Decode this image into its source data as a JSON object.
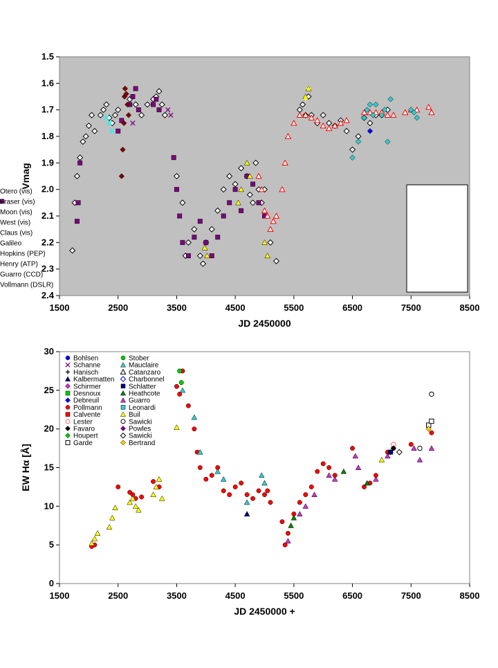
{
  "chart_data": [
    {
      "type": "scatter",
      "xlabel": "JD 2450000",
      "ylabel": "Vmag",
      "xlim": [
        1500,
        8500
      ],
      "ylim": [
        1.5,
        2.4
      ],
      "y_inverted": true,
      "x_ticks": [
        "1500",
        "2500",
        "3500",
        "4500",
        "5500",
        "6500",
        "7500",
        "8500"
      ],
      "y_ticks": [
        "1.5",
        "1.6",
        "1.7",
        "1.8",
        "1.9",
        "2.0",
        "2.1",
        "2.2",
        "2.3",
        "2.4"
      ],
      "plot_background": "#c0c0c0",
      "grid": false,
      "legend_position": "lower-right",
      "series": [
        {
          "name": "Otero (vis)",
          "marker": "diamond-open",
          "color": "#000000",
          "x": [
            1720,
            1760,
            1800,
            1850,
            1900,
            1950,
            2000,
            2050,
            2100,
            2200,
            2250,
            2300,
            2350,
            2400,
            2450,
            2500,
            2700,
            2800,
            2900,
            3000,
            3100,
            3150,
            3200,
            3250,
            3300,
            3500,
            3600,
            3650,
            3700,
            3800,
            3900,
            3950,
            4000,
            4100,
            4200,
            4300,
            4400,
            4500,
            4600,
            4700,
            4750,
            4800,
            4850,
            4900,
            4950,
            5000,
            5100,
            5200,
            5600,
            5650,
            5700,
            5750,
            5800,
            5900,
            6000,
            6100,
            6200,
            6300,
            6400,
            6500,
            6600,
            6700,
            6800,
            6900,
            7000,
            7100
          ],
          "y": [
            2.23,
            2.05,
            1.95,
            1.88,
            1.82,
            1.8,
            1.76,
            1.72,
            1.78,
            1.72,
            1.7,
            1.68,
            1.73,
            1.75,
            1.72,
            1.7,
            1.66,
            1.68,
            1.72,
            1.68,
            1.66,
            1.65,
            1.63,
            1.68,
            1.72,
            1.95,
            2.05,
            2.25,
            2.2,
            2.15,
            2.25,
            2.28,
            2.2,
            2.15,
            2.08,
            2.0,
            1.95,
            1.98,
            1.92,
            1.95,
            2.02,
            2.05,
            1.9,
            2.0,
            2.05,
            2.0,
            2.2,
            2.27,
            1.7,
            1.68,
            1.72,
            1.65,
            1.72,
            1.75,
            1.72,
            1.75,
            1.76,
            1.74,
            1.78,
            1.85,
            1.8,
            1.73,
            1.75,
            1.72,
            1.72,
            1.7
          ]
        },
        {
          "name": "Fraser (vis)",
          "marker": "square",
          "color": "#800080",
          "x": [
            1800,
            1820,
            1850,
            2500,
            2560,
            2700,
            2750,
            2800,
            2850,
            3100,
            3150,
            3200,
            3450,
            3500,
            3550,
            3600,
            3700,
            3800,
            3900,
            4000,
            4100,
            4200,
            4300,
            4400,
            4500,
            4600,
            4700,
            4800,
            4900,
            5000
          ],
          "y": [
            2.12,
            2.05,
            1.9,
            1.78,
            1.74,
            1.68,
            1.65,
            1.62,
            1.7,
            1.68,
            1.66,
            1.7,
            1.88,
            2.0,
            2.1,
            2.2,
            2.25,
            2.18,
            2.12,
            2.2,
            2.25,
            2.18,
            2.1,
            2.05,
            2.0,
            2.08,
            1.95,
            1.98,
            2.05,
            2.1
          ]
        },
        {
          "name": "Moon (vis)",
          "marker": "triangle",
          "color": "#ffff00",
          "x": [
            3980,
            4020,
            4550,
            4600,
            4700,
            4750,
            5000,
            5050,
            5700,
            5750
          ],
          "y": [
            2.22,
            2.25,
            2.05,
            2.0,
            1.9,
            1.95,
            2.2,
            2.25,
            1.65,
            1.62
          ]
        },
        {
          "name": "West (vis)",
          "marker": "x",
          "color": "#00ffff",
          "x": [
            2300,
            2350,
            2400
          ],
          "y": [
            1.73,
            1.75,
            1.78
          ]
        },
        {
          "name": "Claus (vis)",
          "marker": "x",
          "color": "#800080",
          "x": [
            2750,
            3350,
            3400
          ],
          "y": [
            1.75,
            1.7,
            1.72
          ]
        },
        {
          "name": "Galileo",
          "marker": "diamond",
          "color": "#800000",
          "x": [
            2560,
            2580,
            2600,
            2610,
            2620,
            2640,
            2660,
            2680
          ],
          "y": [
            1.95,
            1.85,
            1.75,
            1.65,
            1.62,
            1.64,
            1.68,
            1.72
          ]
        },
        {
          "name": "Hopkins (PEP)",
          "marker": "plus",
          "color": "#ffff00",
          "x": [
            5700,
            5750
          ],
          "y": [
            1.66,
            1.62
          ]
        },
        {
          "name": "Henry (ATP)",
          "marker": "triangle-open",
          "color": "#ff0000",
          "x": [
            4900,
            4950,
            5000,
            5050,
            5100,
            5150,
            5200,
            5300,
            5350,
            5400,
            5500,
            5600,
            5700,
            5800,
            5900,
            6000,
            6100,
            6200,
            6300,
            6400,
            6700,
            6800,
            6900,
            7000,
            7100,
            7200,
            7400,
            7500,
            7600,
            7800,
            7850
          ],
          "y": [
            1.95,
            2.0,
            2.08,
            2.1,
            2.15,
            2.12,
            2.1,
            2.0,
            1.9,
            1.8,
            1.75,
            1.72,
            1.72,
            1.73,
            1.74,
            1.76,
            1.77,
            1.76,
            1.75,
            1.74,
            1.71,
            1.71,
            1.71,
            1.71,
            1.72,
            1.72,
            1.71,
            1.7,
            1.7,
            1.69,
            1.71
          ]
        },
        {
          "name": "Guarro (CCD)",
          "marker": "diamond",
          "color": "#0000ff",
          "x": [
            6800,
            6850
          ],
          "y": [
            1.78,
            1.72
          ]
        },
        {
          "name": "Vollmann (DSLR)",
          "marker": "diamond",
          "color": "#33cccc",
          "x": [
            6500,
            6600,
            6700,
            6750,
            6800,
            6850,
            6900,
            7000,
            7050,
            7100,
            7150,
            7500,
            7550,
            7600
          ],
          "y": [
            1.88,
            1.82,
            1.73,
            1.7,
            1.68,
            1.72,
            1.68,
            1.72,
            1.7,
            1.82,
            1.66,
            1.7,
            1.71,
            1.73
          ]
        }
      ]
    },
    {
      "type": "scatter",
      "xlabel": "JD 2450000 +",
      "ylabel": "EW Hα [Å]",
      "xlim": [
        1500,
        8500
      ],
      "ylim": [
        0,
        30
      ],
      "x_ticks": [
        "1500",
        "2500",
        "3500",
        "4500",
        "5500",
        "6500",
        "7500",
        "8500"
      ],
      "y_ticks": [
        "0",
        "5",
        "10",
        "15",
        "20",
        "25",
        "30"
      ],
      "plot_background": "#ffffff",
      "grid": false,
      "legend_position": "top-left",
      "series": [
        {
          "name": "Bohlsen",
          "marker": "circle",
          "color": "#0000ff",
          "x": [],
          "y": []
        },
        {
          "name": "Schanne",
          "marker": "x",
          "color": "#800080",
          "x": [],
          "y": []
        },
        {
          "name": "Hanisch",
          "marker": "plus",
          "color": "#000000",
          "x": [],
          "y": []
        },
        {
          "name": "Kalbermatten",
          "marker": "triangle",
          "color": "#000080",
          "x": [
            4700
          ],
          "y": [
            9
          ]
        },
        {
          "name": "Schirmer",
          "marker": "diamond",
          "color": "#cc33cc",
          "x": [],
          "y": []
        },
        {
          "name": "Desnoux",
          "marker": "square",
          "color": "#00cc00",
          "x": [],
          "y": []
        },
        {
          "name": "Debreuil",
          "marker": "diamond",
          "color": "#0000ff",
          "x": [],
          "y": []
        },
        {
          "name": "Pollmann",
          "marker": "circle",
          "color": "#ff0000",
          "x": [
            2050,
            2100,
            2500,
            2700,
            2750,
            2800,
            2900,
            3100,
            3200,
            3500,
            3550,
            3600,
            3700,
            3800,
            3850,
            3900,
            4000,
            4100,
            4200,
            4300,
            4400,
            4500,
            4600,
            4700,
            4800,
            4900,
            5000,
            5050,
            5100,
            5300,
            5350,
            5400,
            5500,
            5600,
            5700,
            5800,
            5900,
            6000,
            6100,
            6200,
            6500,
            6700,
            6800,
            6900,
            7100,
            7200,
            7500,
            7850
          ],
          "y": [
            4.8,
            5.0,
            12.5,
            11.8,
            11.5,
            11.0,
            11.2,
            13.2,
            12.5,
            25.5,
            24.5,
            27.5,
            23.0,
            20.0,
            17.0,
            15.0,
            13.5,
            14.0,
            15.0,
            12.0,
            11.5,
            12.5,
            13.0,
            11.5,
            11.0,
            12.0,
            11.5,
            12.0,
            10.5,
            8.0,
            5.0,
            6.5,
            9.0,
            10.5,
            11.5,
            12.5,
            14.5,
            15.5,
            15.0,
            14.0,
            17.5,
            12.5,
            13.0,
            14.0,
            17.0,
            17.5,
            18.0,
            19.5
          ]
        },
        {
          "name": "Calvente",
          "marker": "square",
          "color": "#ff0000",
          "x": [],
          "y": []
        },
        {
          "name": "Lester",
          "marker": "circle-open",
          "color": "#ff6666",
          "x": [
            7200
          ],
          "y": [
            18
          ]
        },
        {
          "name": "Favaro",
          "marker": "diamond",
          "color": "#000000",
          "x": [
            7150,
            7200
          ],
          "y": [
            17.0,
            17.5
          ]
        },
        {
          "name": "Houpert",
          "marker": "diamond",
          "color": "#00cc00",
          "x": [],
          "y": []
        },
        {
          "name": "Garde",
          "marker": "square-open",
          "color": "#000000",
          "x": [
            7800,
            7850
          ],
          "y": [
            20.5,
            21.0
          ]
        },
        {
          "name": "Stober",
          "marker": "circle",
          "color": "#00cc00",
          "x": [
            3550,
            3580
          ],
          "y": [
            27.5,
            26.0
          ]
        },
        {
          "name": "Mauclaire",
          "marker": "triangle",
          "color": "#33cccc",
          "x": [
            3600,
            3800,
            3900,
            4200,
            4300,
            4700,
            4950,
            5000
          ],
          "y": [
            25.0,
            21.5,
            17.0,
            14.5,
            13.5,
            10.5,
            14.0,
            13.0
          ]
        },
        {
          "name": "Catanzaro",
          "marker": "triangle-open",
          "color": "#000000",
          "x": [],
          "y": []
        },
        {
          "name": "Charbonnel",
          "marker": "diamond-open",
          "color": "#0000ff",
          "x": [],
          "y": []
        },
        {
          "name": "Schlatter",
          "marker": "square",
          "color": "#000080",
          "x": [
            7150
          ],
          "y": [
            17.0
          ]
        },
        {
          "name": "Heathcote",
          "marker": "triangle",
          "color": "#008000",
          "x": [
            5450,
            5500,
            6350,
            6750
          ],
          "y": [
            7.5,
            8.5,
            14.5,
            13.0
          ]
        },
        {
          "name": "Guarro",
          "marker": "triangle",
          "color": "#cc33cc",
          "x": [
            5400,
            5600,
            5700,
            5850,
            6100,
            6200,
            6550,
            6600,
            6900,
            7100,
            7550,
            7650,
            7850
          ],
          "y": [
            5.5,
            9.0,
            10.0,
            11.5,
            14.0,
            13.5,
            16.5,
            15.0,
            13.5,
            16.5,
            17.5,
            16.0,
            17.5
          ]
        },
        {
          "name": "Leonardi",
          "marker": "square",
          "color": "#33cccc",
          "x": [],
          "y": []
        },
        {
          "name": "Buil",
          "marker": "triangle",
          "color": "#ffff00",
          "x": [
            2050,
            2100,
            2150,
            2350,
            2400,
            2450,
            2700,
            2750,
            2800,
            2850,
            3100,
            3150,
            3200,
            3250,
            3500,
            7000
          ],
          "y": [
            5.2,
            5.8,
            6.5,
            7.3,
            8.5,
            9.8,
            10.5,
            11.0,
            10.0,
            9.5,
            11.5,
            12.5,
            13.5,
            11.0,
            20.2,
            16.0
          ]
        },
        {
          "name": "Sawicki",
          "marker": "circle-open",
          "color": "#000000",
          "x": [
            7650,
            7850
          ],
          "y": [
            17.5,
            24.5
          ]
        },
        {
          "name": "Powles",
          "marker": "diamond",
          "color": "#800080",
          "x": [],
          "y": []
        },
        {
          "name": "Sawicki",
          "marker": "diamond-open",
          "color": "#000000",
          "x": [
            7300
          ],
          "y": [
            17.0
          ]
        },
        {
          "name": "Bertrand",
          "marker": "diamond",
          "color": "#ffcc00",
          "x": [
            7800
          ],
          "y": [
            20.0
          ]
        }
      ]
    }
  ]
}
